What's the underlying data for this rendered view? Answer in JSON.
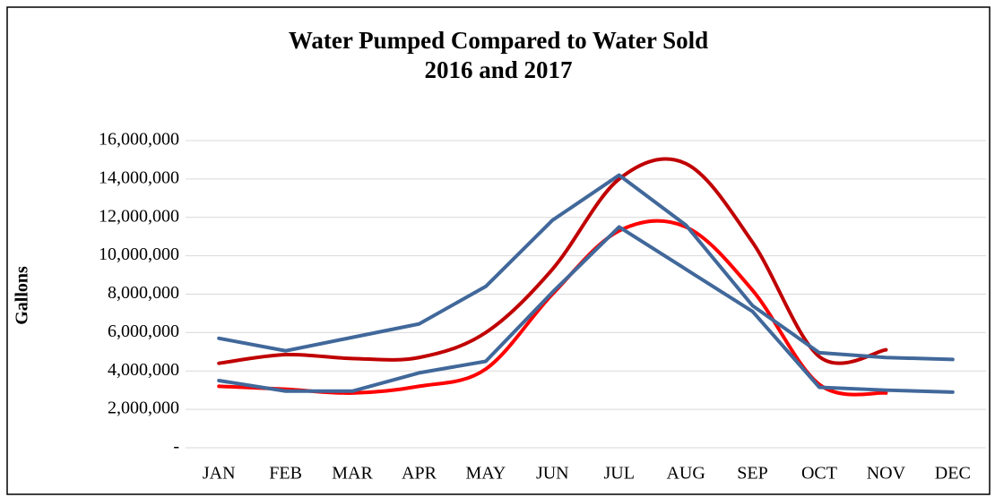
{
  "chart_data": {
    "type": "line",
    "title": "Water Pumped Compared to Water Sold",
    "subtitle": "2016 and 2017",
    "y_label": "Gallons",
    "categories": [
      "JAN",
      "FEB",
      "MAR",
      "APR",
      "MAY",
      "JUN",
      "JUL",
      "AUG",
      "SEP",
      "OCT",
      "NOV",
      "DEC"
    ],
    "series": [
      {
        "color": "#c00000",
        "smooth": true,
        "values": [
          4400000,
          4850000,
          4650000,
          4700000,
          6000000,
          9300000,
          14000000,
          14800000,
          10700000,
          4750000,
          5100000,
          null
        ]
      },
      {
        "color": "#ff0000",
        "smooth": true,
        "values": [
          3200000,
          3050000,
          2850000,
          3200000,
          4100000,
          8000000,
          11300000,
          11500000,
          8200000,
          3300000,
          2850000,
          null
        ]
      },
      {
        "color": "#41689a",
        "smooth": false,
        "values": [
          5700000,
          5050000,
          5750000,
          6450000,
          8400000,
          11850000,
          14200000,
          11600000,
          7400000,
          4950000,
          4700000,
          4600000
        ]
      },
      {
        "color": "#41689a",
        "smooth": false,
        "values": [
          3500000,
          2950000,
          2950000,
          3900000,
          4500000,
          8100000,
          11500000,
          9300000,
          7100000,
          3150000,
          3000000,
          2900000
        ]
      }
    ],
    "ylim": [
      0,
      16000000
    ],
    "yticks": [
      {
        "value": 0,
        "label": "-"
      },
      {
        "value": 2000000,
        "label": "2,000,000"
      },
      {
        "value": 4000000,
        "label": "4,000,000"
      },
      {
        "value": 6000000,
        "label": "6,000,000"
      },
      {
        "value": 8000000,
        "label": "8,000,000"
      },
      {
        "value": 10000000,
        "label": "10,000,000"
      },
      {
        "value": 12000000,
        "label": "12,000,000"
      },
      {
        "value": 14000000,
        "label": "14,000,000"
      },
      {
        "value": 16000000,
        "label": "16,000,000"
      }
    ],
    "grid": true
  }
}
